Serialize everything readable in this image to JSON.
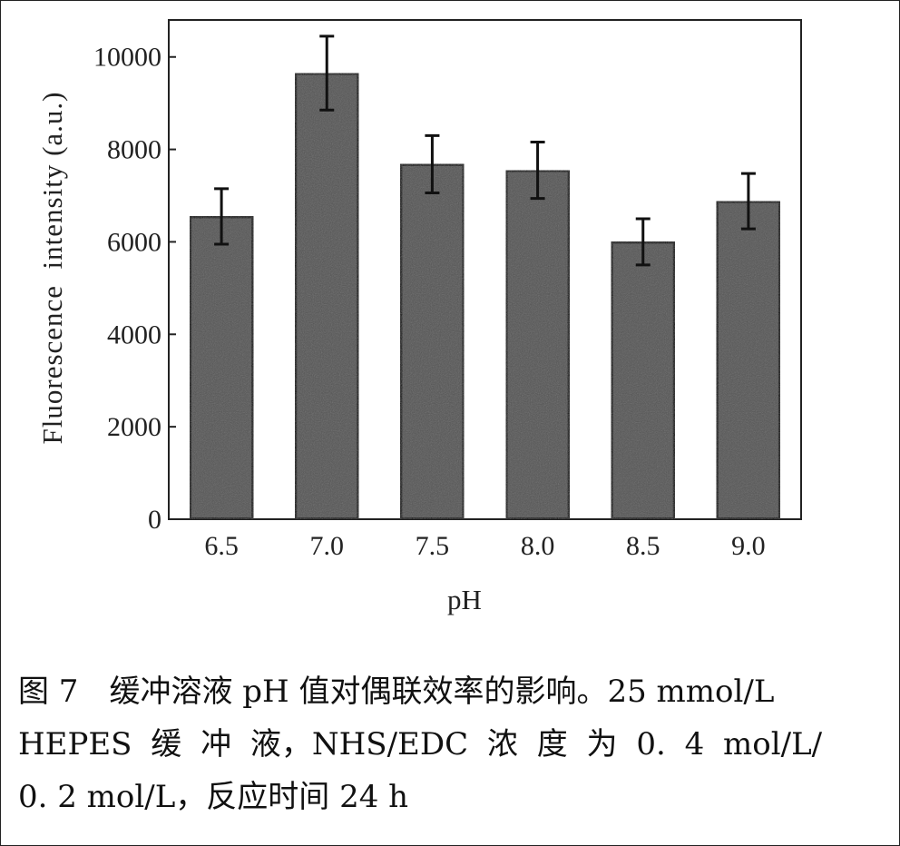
{
  "chart_data": {
    "type": "bar",
    "categories": [
      "6.5",
      "7.0",
      "7.5",
      "8.0",
      "8.5",
      "9.0"
    ],
    "values": [
      6550,
      9650,
      7680,
      7550,
      6000,
      6880
    ],
    "errors": [
      600,
      800,
      620,
      610,
      500,
      600
    ],
    "xlabel": "pH",
    "ylabel": "Fluorescence  intensity (a.u.)",
    "ylim": [
      0,
      10800
    ],
    "yticks": [
      0,
      2000,
      4000,
      6000,
      8000,
      10000
    ],
    "grid": false,
    "bar_color": "#555555",
    "bar_edge_color": "#111111"
  },
  "caption": {
    "line1": "图 7　缓冲溶液 pH 值对偶联效率的影响。25 mmol/L",
    "line2": "HEPES 缓 冲 液，NHS/EDC 浓 度 为 0. 4 mol/L/",
    "line3": "0. 2 mol/L，反应时间 24 h"
  }
}
